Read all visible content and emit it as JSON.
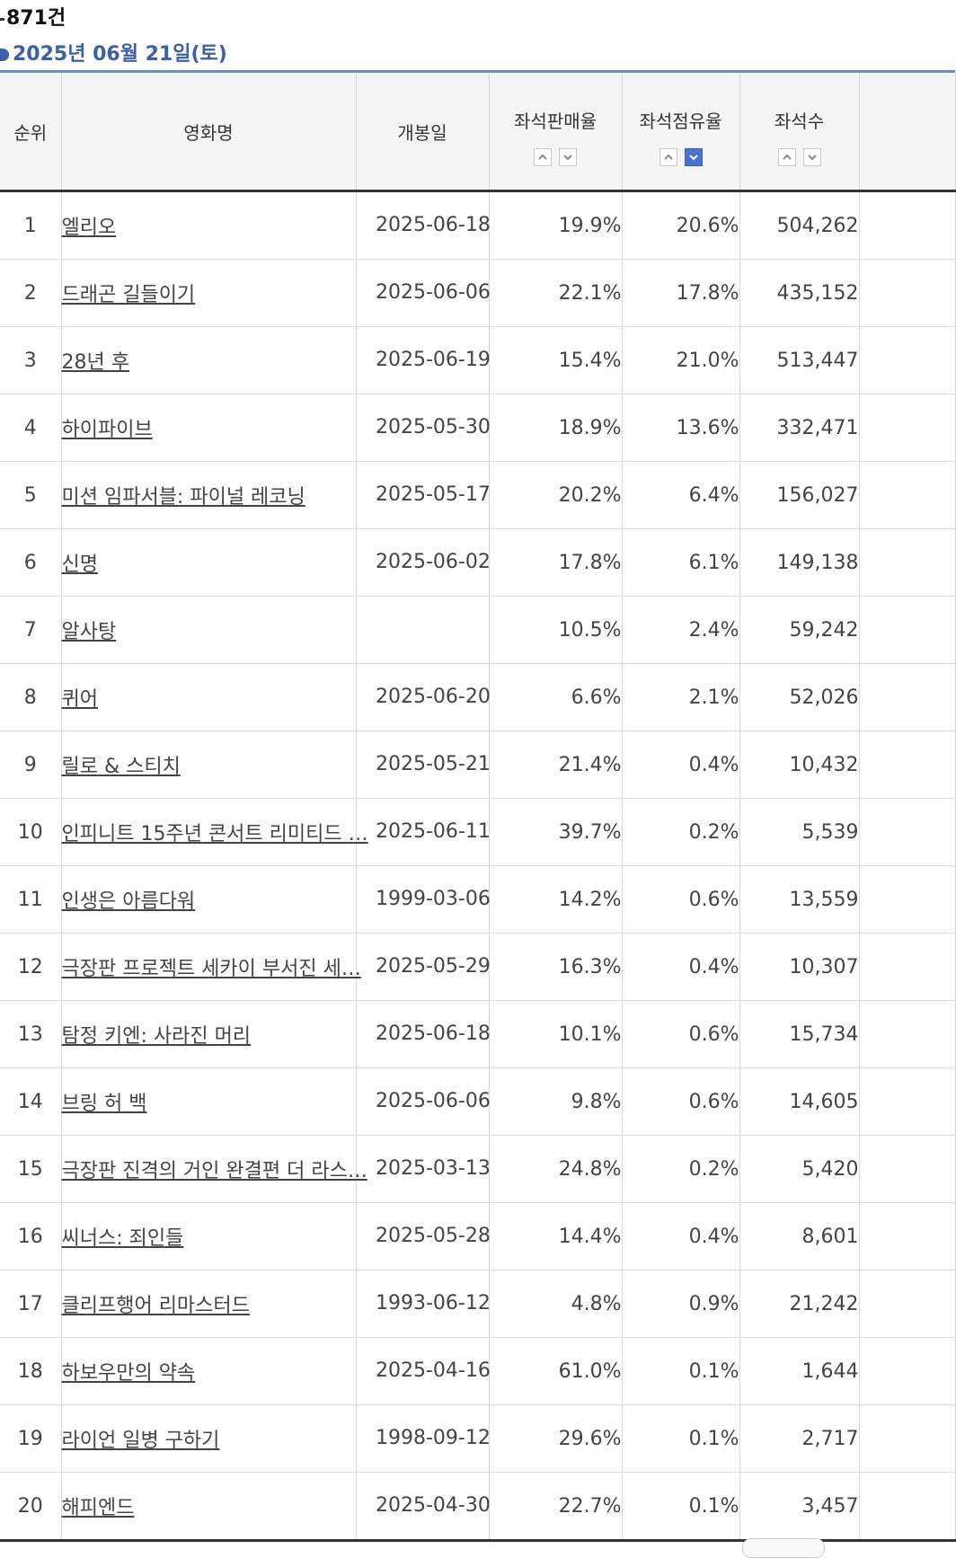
{
  "header": {
    "total_count": "871건",
    "date": "2025년 06월 21일(토)"
  },
  "columns": {
    "rank": "순위",
    "title": "영화명",
    "release": "개봉일",
    "sales_ratio": "좌석판매율",
    "seat_share": "좌석점유율",
    "seats": "좌석수"
  },
  "sort": {
    "active_column": "좌석점유율",
    "active_direction": "descending",
    "active_color": "#4a72d4"
  },
  "rows": [
    {
      "rank": "1",
      "title": "엘리오",
      "release": "2025-06-18",
      "sales_ratio": "19.9%",
      "seat_share": "20.6%",
      "seats": "504,262"
    },
    {
      "rank": "2",
      "title": "드래곤 길들이기",
      "release": "2025-06-06",
      "sales_ratio": "22.1%",
      "seat_share": "17.8%",
      "seats": "435,152"
    },
    {
      "rank": "3",
      "title": "28년 후",
      "release": "2025-06-19",
      "sales_ratio": "15.4%",
      "seat_share": "21.0%",
      "seats": "513,447"
    },
    {
      "rank": "4",
      "title": "하이파이브",
      "release": "2025-05-30",
      "sales_ratio": "18.9%",
      "seat_share": "13.6%",
      "seats": "332,471"
    },
    {
      "rank": "5",
      "title": "미션 임파서블: 파이널 레코닝",
      "release": "2025-05-17",
      "sales_ratio": "20.2%",
      "seat_share": "6.4%",
      "seats": "156,027"
    },
    {
      "rank": "6",
      "title": "신명",
      "release": "2025-06-02",
      "sales_ratio": "17.8%",
      "seat_share": "6.1%",
      "seats": "149,138"
    },
    {
      "rank": "7",
      "title": "알사탕",
      "release": "",
      "sales_ratio": "10.5%",
      "seat_share": "2.4%",
      "seats": "59,242"
    },
    {
      "rank": "8",
      "title": "퀴어",
      "release": "2025-06-20",
      "sales_ratio": "6.6%",
      "seat_share": "2.1%",
      "seats": "52,026"
    },
    {
      "rank": "9",
      "title": "릴로 & 스티치",
      "release": "2025-05-21",
      "sales_ratio": "21.4%",
      "seat_share": "0.4%",
      "seats": "10,432"
    },
    {
      "rank": "10",
      "title": "인피니트 15주년 콘서트 리미티드 …",
      "release": "2025-06-11",
      "sales_ratio": "39.7%",
      "seat_share": "0.2%",
      "seats": "5,539"
    },
    {
      "rank": "11",
      "title": "인생은 아름다워",
      "release": "1999-03-06",
      "sales_ratio": "14.2%",
      "seat_share": "0.6%",
      "seats": "13,559"
    },
    {
      "rank": "12",
      "title": "극장판 프로젝트 세카이 부서진 세…",
      "release": "2025-05-29",
      "sales_ratio": "16.3%",
      "seat_share": "0.4%",
      "seats": "10,307"
    },
    {
      "rank": "13",
      "title": "탐정 키엔: 사라진 머리",
      "release": "2025-06-18",
      "sales_ratio": "10.1%",
      "seat_share": "0.6%",
      "seats": "15,734"
    },
    {
      "rank": "14",
      "title": "브링 허 백",
      "release": "2025-06-06",
      "sales_ratio": "9.8%",
      "seat_share": "0.6%",
      "seats": "14,605"
    },
    {
      "rank": "15",
      "title": "극장판 진격의 거인 완결편 더 라스…",
      "release": "2025-03-13",
      "sales_ratio": "24.8%",
      "seat_share": "0.2%",
      "seats": "5,420"
    },
    {
      "rank": "16",
      "title": "씨너스: 죄인들",
      "release": "2025-05-28",
      "sales_ratio": "14.4%",
      "seat_share": "0.4%",
      "seats": "8,601"
    },
    {
      "rank": "17",
      "title": "클리프행어 리마스터드",
      "release": "1993-06-12",
      "sales_ratio": "4.8%",
      "seat_share": "0.9%",
      "seats": "21,242"
    },
    {
      "rank": "18",
      "title": "하보우만의 약속",
      "release": "2025-04-16",
      "sales_ratio": "61.0%",
      "seat_share": "0.1%",
      "seats": "1,644"
    },
    {
      "rank": "19",
      "title": "라이언 일병 구하기",
      "release": "1998-09-12",
      "sales_ratio": "29.6%",
      "seat_share": "0.1%",
      "seats": "2,717"
    },
    {
      "rank": "20",
      "title": "해피엔드",
      "release": "2025-04-30",
      "sales_ratio": "22.7%",
      "seat_share": "0.1%",
      "seats": "3,457"
    }
  ]
}
